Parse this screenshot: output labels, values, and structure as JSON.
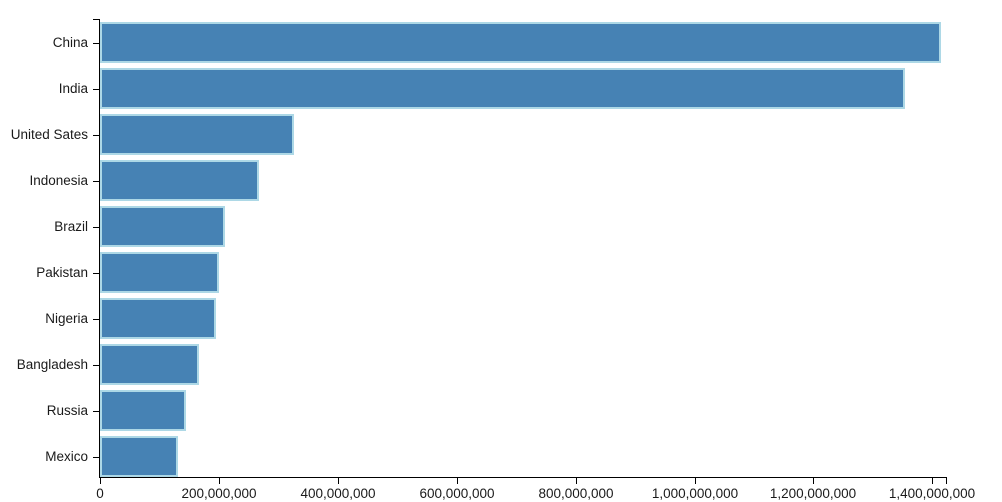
{
  "chart_data": {
    "type": "bar",
    "orientation": "horizontal",
    "title": "",
    "xlabel": "",
    "ylabel": "",
    "categories": [
      "China",
      "India",
      "United Sates",
      "Indonesia",
      "Brazil",
      "Pakistan",
      "Nigeria",
      "Bangladesh",
      "Russia",
      "Mexico"
    ],
    "values": [
      1415045928,
      1354051854,
      326766748,
      266794980,
      210867954,
      200813818,
      195875237,
      166368149,
      143964709,
      130759074
    ],
    "xlim": [
      0,
      1423000000
    ],
    "x_ticks": [
      0,
      200000000,
      400000000,
      600000000,
      800000000,
      1000000000,
      1200000000,
      1400000000
    ],
    "x_tick_labels": [
      "0",
      "200,000,000",
      "400,000,000",
      "600,000,000",
      "800,000,000",
      "1,000,000,000",
      "1,200,000,000",
      "1,400,000,000"
    ],
    "grid": false,
    "legend": null,
    "colors": {
      "bar_fill": "#4682b4",
      "bar_edge": "#add8e6",
      "axis": "#000000",
      "text": "#1a1a1a",
      "background": "#ffffff"
    }
  }
}
